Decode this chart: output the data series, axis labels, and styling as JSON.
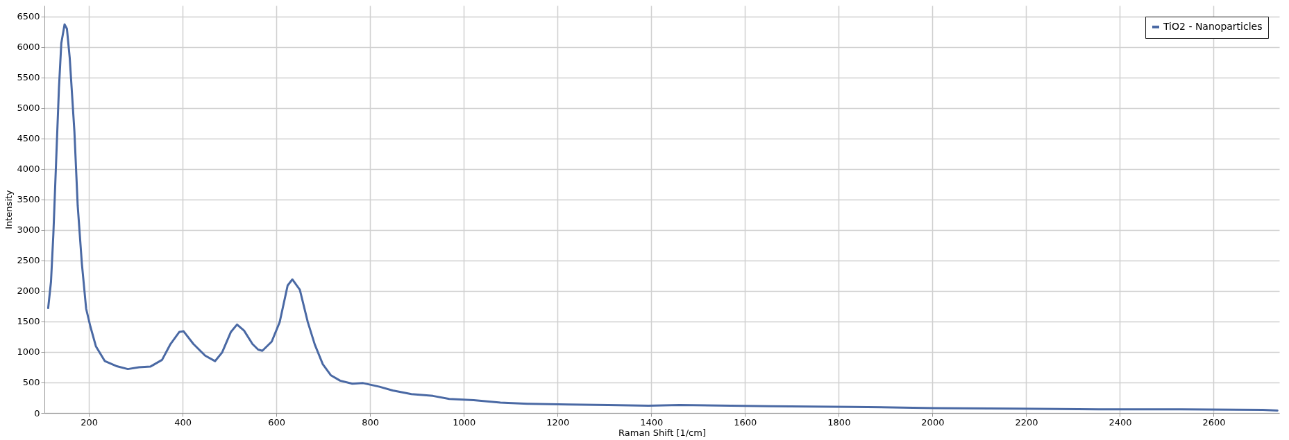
{
  "chart_data": {
    "type": "line",
    "xlabel": "Raman Shift [1/cm]",
    "ylabel": "Intensity",
    "xlim": [
      105,
      2740
    ],
    "ylim": [
      0,
      6680
    ],
    "xticks": [
      200,
      400,
      600,
      800,
      1000,
      1200,
      1400,
      1600,
      1800,
      2000,
      2200,
      2400,
      2600
    ],
    "yticks": [
      0,
      500,
      1000,
      1500,
      2000,
      2500,
      3000,
      3500,
      4000,
      4500,
      5000,
      5500,
      6000,
      6500
    ],
    "grid": true,
    "legend": "top right",
    "line_style": "solid",
    "series": [
      {
        "name": "TiO2 - Nanoparticles",
        "color": "#4a69a4",
        "x": [
          113,
          119,
          124,
          130,
          136,
          141,
          148,
          153,
          159,
          169,
          176,
          185,
          194,
          203,
          215,
          234,
          258,
          283,
          307,
          331,
          356,
          374,
          393,
          402,
          423,
          448,
          469,
          484,
          503,
          516,
          531,
          549,
          561,
          570,
          590,
          607,
          624,
          634,
          650,
          667,
          682,
          699,
          716,
          736,
          762,
          785,
          820,
          848,
          888,
          934,
          969,
          1021,
          1078,
          1136,
          1222,
          1308,
          1394,
          1460,
          1653,
          1828,
          2004,
          2179,
          2354,
          2530,
          2705,
          2736
        ],
        "values": [
          1720,
          2150,
          2920,
          4130,
          5330,
          6060,
          6370,
          6300,
          5820,
          4610,
          3400,
          2440,
          1710,
          1420,
          1090,
          850,
          770,
          720,
          750,
          760,
          870,
          1130,
          1330,
          1340,
          1130,
          940,
          850,
          990,
          1330,
          1450,
          1350,
          1130,
          1040,
          1020,
          1170,
          1490,
          2090,
          2190,
          2020,
          1490,
          1120,
          800,
          620,
          530,
          480,
          490,
          430,
          370,
          310,
          280,
          230,
          210,
          170,
          150,
          140,
          130,
          120,
          130,
          110,
          100,
          80,
          70,
          60,
          60,
          50,
          40
        ]
      }
    ]
  }
}
